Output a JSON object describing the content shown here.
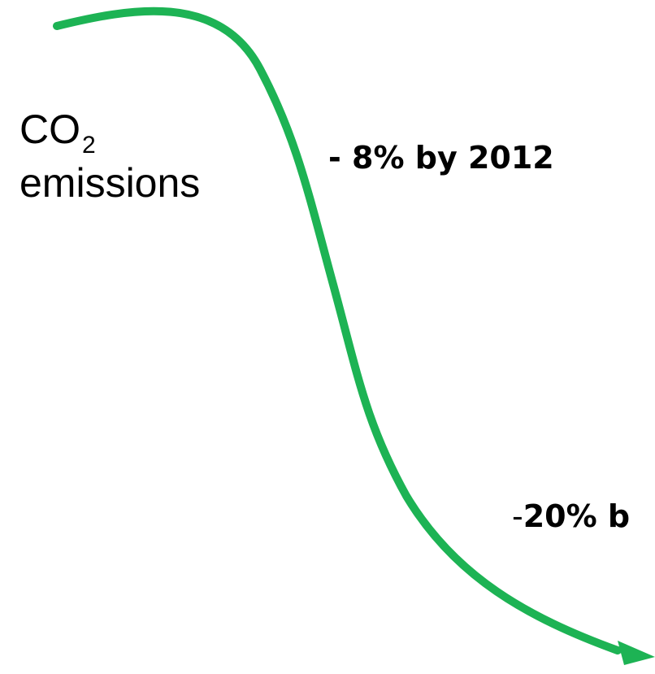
{
  "label": {
    "main_base": "CO",
    "main_sub": "2",
    "line2": "emissions"
  },
  "targets": [
    {
      "text": "- 8% by 2012"
    },
    {
      "prefix": "-",
      "text": "20% b"
    }
  ],
  "colors": {
    "curve": "#1db354",
    "text": "#000000",
    "background": "#ffffff"
  }
}
